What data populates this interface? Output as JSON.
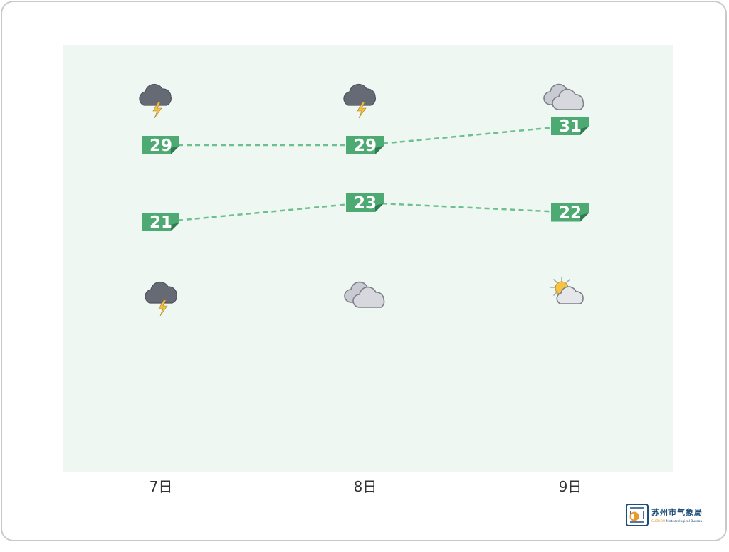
{
  "chart_data": {
    "type": "line",
    "categories": [
      "7日",
      "8日",
      "9日"
    ],
    "series": [
      {
        "values": [
          29,
          29,
          31
        ]
      },
      {
        "values": [
          21,
          23,
          22
        ]
      }
    ],
    "day_icons": [
      "thunderstorm-icon",
      "thunderstorm-icon",
      "cloudy-icon"
    ],
    "night_icons": [
      "thunderstorm-icon",
      "cloudy-icon",
      "partly-cloudy-icon"
    ],
    "line_color": "#6dbf8e",
    "label_color": "#4daa72",
    "line_style": "dashed"
  },
  "logo": {
    "title": "苏州市气象局",
    "subtitle_highlight": "SUZHOU",
    "subtitle": " Meteorological Bureau"
  }
}
